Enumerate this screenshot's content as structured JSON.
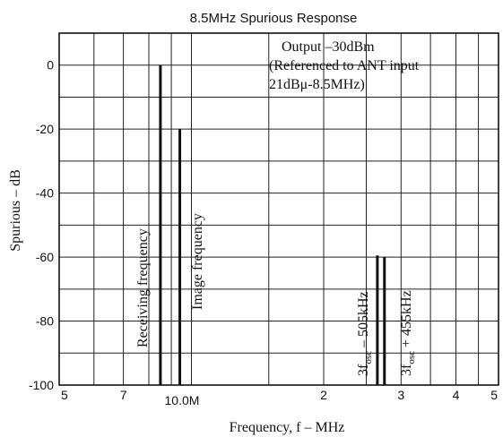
{
  "chart_data": {
    "type": "bar",
    "title": "8.5MHz Spurious Response",
    "xlabel": "Frequency, f  –  MHz",
    "ylabel": "Spurious  –  dB",
    "x_scale": "log",
    "xlim": [
      5,
      50
    ],
    "ylim": [
      -100,
      10
    ],
    "x_ticks": [
      {
        "value": 5,
        "label": "5"
      },
      {
        "value": 7,
        "label": "7"
      },
      {
        "value": 10,
        "label": "10.0M"
      },
      {
        "value": 20,
        "label": "2"
      },
      {
        "value": 30,
        "label": "3"
      },
      {
        "value": 40,
        "label": "4"
      },
      {
        "value": 50,
        "label": "5"
      }
    ],
    "x_minor_grid": [
      6,
      8,
      9,
      15,
      25,
      35,
      45
    ],
    "y_ticks": [
      0,
      -20,
      -40,
      -60,
      -80,
      -100
    ],
    "y_minor_grid": [
      10,
      -10,
      -30,
      -50,
      -70,
      -90
    ],
    "grid": true,
    "series": [
      {
        "name": "Receiving frequency",
        "x": 8.5,
        "value": 0
      },
      {
        "name": "Image frequency",
        "x": 9.41,
        "value": -20
      },
      {
        "name": "3fosc – 505kHz",
        "x": 26.5,
        "value": -59.5
      },
      {
        "name": "3fosc + 455kHz",
        "x": 27.5,
        "value": -60
      }
    ],
    "annotations": {
      "line1": "Output –30dBm",
      "line2": "(Referenced to ANT input",
      "line3": "21dBμ-8.5MHz)",
      "spur3_main": "3f",
      "spur3_sub": "osc",
      "spur3_rest": "– 505kHz",
      "spur4_main": "3f",
      "spur4_sub": "osc",
      "spur4_rest": "+ 455kHz"
    }
  }
}
